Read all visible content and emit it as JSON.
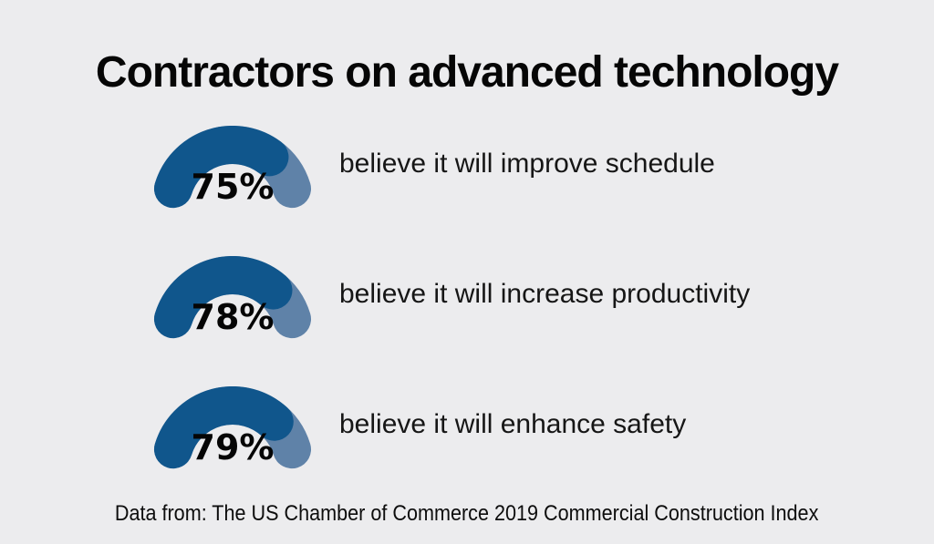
{
  "title": "Contractors on advanced technology",
  "footer": "Data from: The US Chamber of Commerce 2019 Commercial Construction Index",
  "rows": [
    {
      "percent_label": "75%",
      "description": "believe it will improve schedule"
    },
    {
      "percent_label": "78%",
      "description": "believe it will increase productivity"
    },
    {
      "percent_label": "79%",
      "description": "believe it will enhance safety"
    }
  ],
  "chart_data": {
    "type": "gauge",
    "title": "Contractors on advanced technology",
    "values": [
      75,
      78,
      79
    ],
    "unit": "%",
    "labels": [
      "believe it will improve schedule",
      "believe it will increase productivity",
      "believe it will enhance safety"
    ],
    "source_note": "Data from: The US Chamber of Commerce 2019 Commercial Construction Index",
    "gauge_geometry": {
      "start_angle_deg": 163,
      "end_angle_deg": 17,
      "radius": 68,
      "stroke_width": 42
    },
    "legend": "none",
    "grid": false
  },
  "colors": {
    "background": "#ececee",
    "gauge_fill": "#10568c",
    "gauge_track": "#5f82a8",
    "title_text": "#060606",
    "body_text": "#161616"
  }
}
